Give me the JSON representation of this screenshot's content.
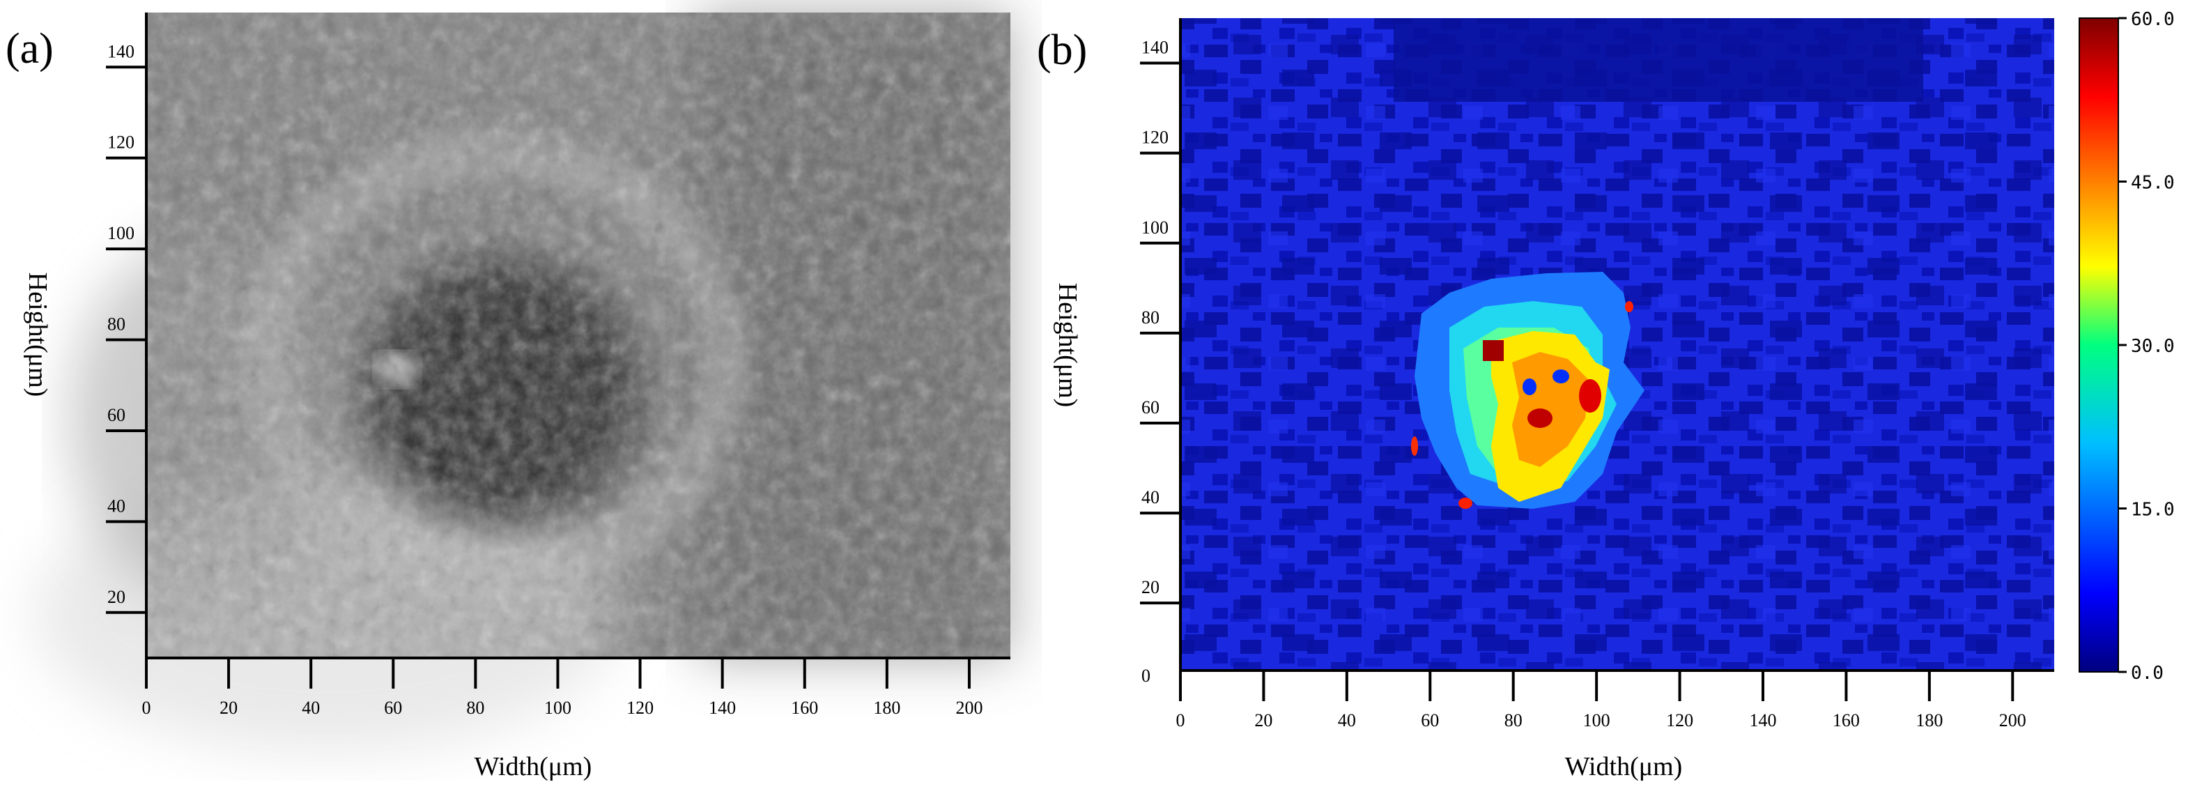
{
  "panels": {
    "a": {
      "label": "(a)",
      "xlabel": "Width(μm)",
      "ylabel": "Height(μm)",
      "xticks": [
        0,
        20,
        40,
        60,
        80,
        100,
        120,
        140,
        160,
        180,
        200
      ],
      "yticks": [
        20,
        40,
        60,
        80,
        100,
        120,
        140
      ],
      "xlim": [
        0,
        210
      ],
      "ylim": [
        10,
        152
      ]
    },
    "b": {
      "label": "(b)",
      "xlabel": "Width(μm)",
      "ylabel": "Height(μm)",
      "xticks": [
        0,
        20,
        40,
        60,
        80,
        100,
        120,
        140,
        160,
        180,
        200
      ],
      "yticks": [
        0,
        20,
        40,
        60,
        80,
        100,
        120,
        140
      ],
      "xlim": [
        0,
        210
      ],
      "ylim": [
        5,
        150
      ]
    }
  },
  "colorbar": {
    "ticks": [
      "60.0",
      "45.0",
      "30.0",
      "15.0",
      "0.0"
    ],
    "range": [
      0,
      60
    ],
    "colors": [
      "#00007f",
      "#0000ff",
      "#00bfff",
      "#00ff80",
      "#ffff00",
      "#ff8000",
      "#ff0000",
      "#7f0000"
    ]
  },
  "chart_data": [
    {
      "type": "heatmap",
      "panel": "(a)",
      "xlabel": "Width(μm)",
      "ylabel": "Height(μm)",
      "xlim": [
        0,
        210
      ],
      "ylim": [
        10,
        152
      ],
      "features": [
        {
          "region": "dark circular crater",
          "center": [
            82,
            72
          ],
          "radius": 32
        }
      ]
    },
    {
      "type": "heatmap",
      "panel": "(b)",
      "xlabel": "Width(μm)",
      "ylabel": "Height(μm)",
      "xlim": [
        0,
        210
      ],
      "ylim": [
        5,
        150
      ],
      "value_range": [
        0,
        60
      ],
      "background_value": 5,
      "regions": [
        {
          "level": "moderate",
          "value": 20,
          "x_range": [
            57,
            105
          ],
          "y_range": [
            42,
            100
          ]
        },
        {
          "level": "high",
          "value": 42,
          "x_range": [
            70,
            102
          ],
          "y_range": [
            45,
            86
          ]
        },
        {
          "level": "peak",
          "value": 58,
          "center": [
            75,
            80
          ]
        }
      ]
    }
  ]
}
